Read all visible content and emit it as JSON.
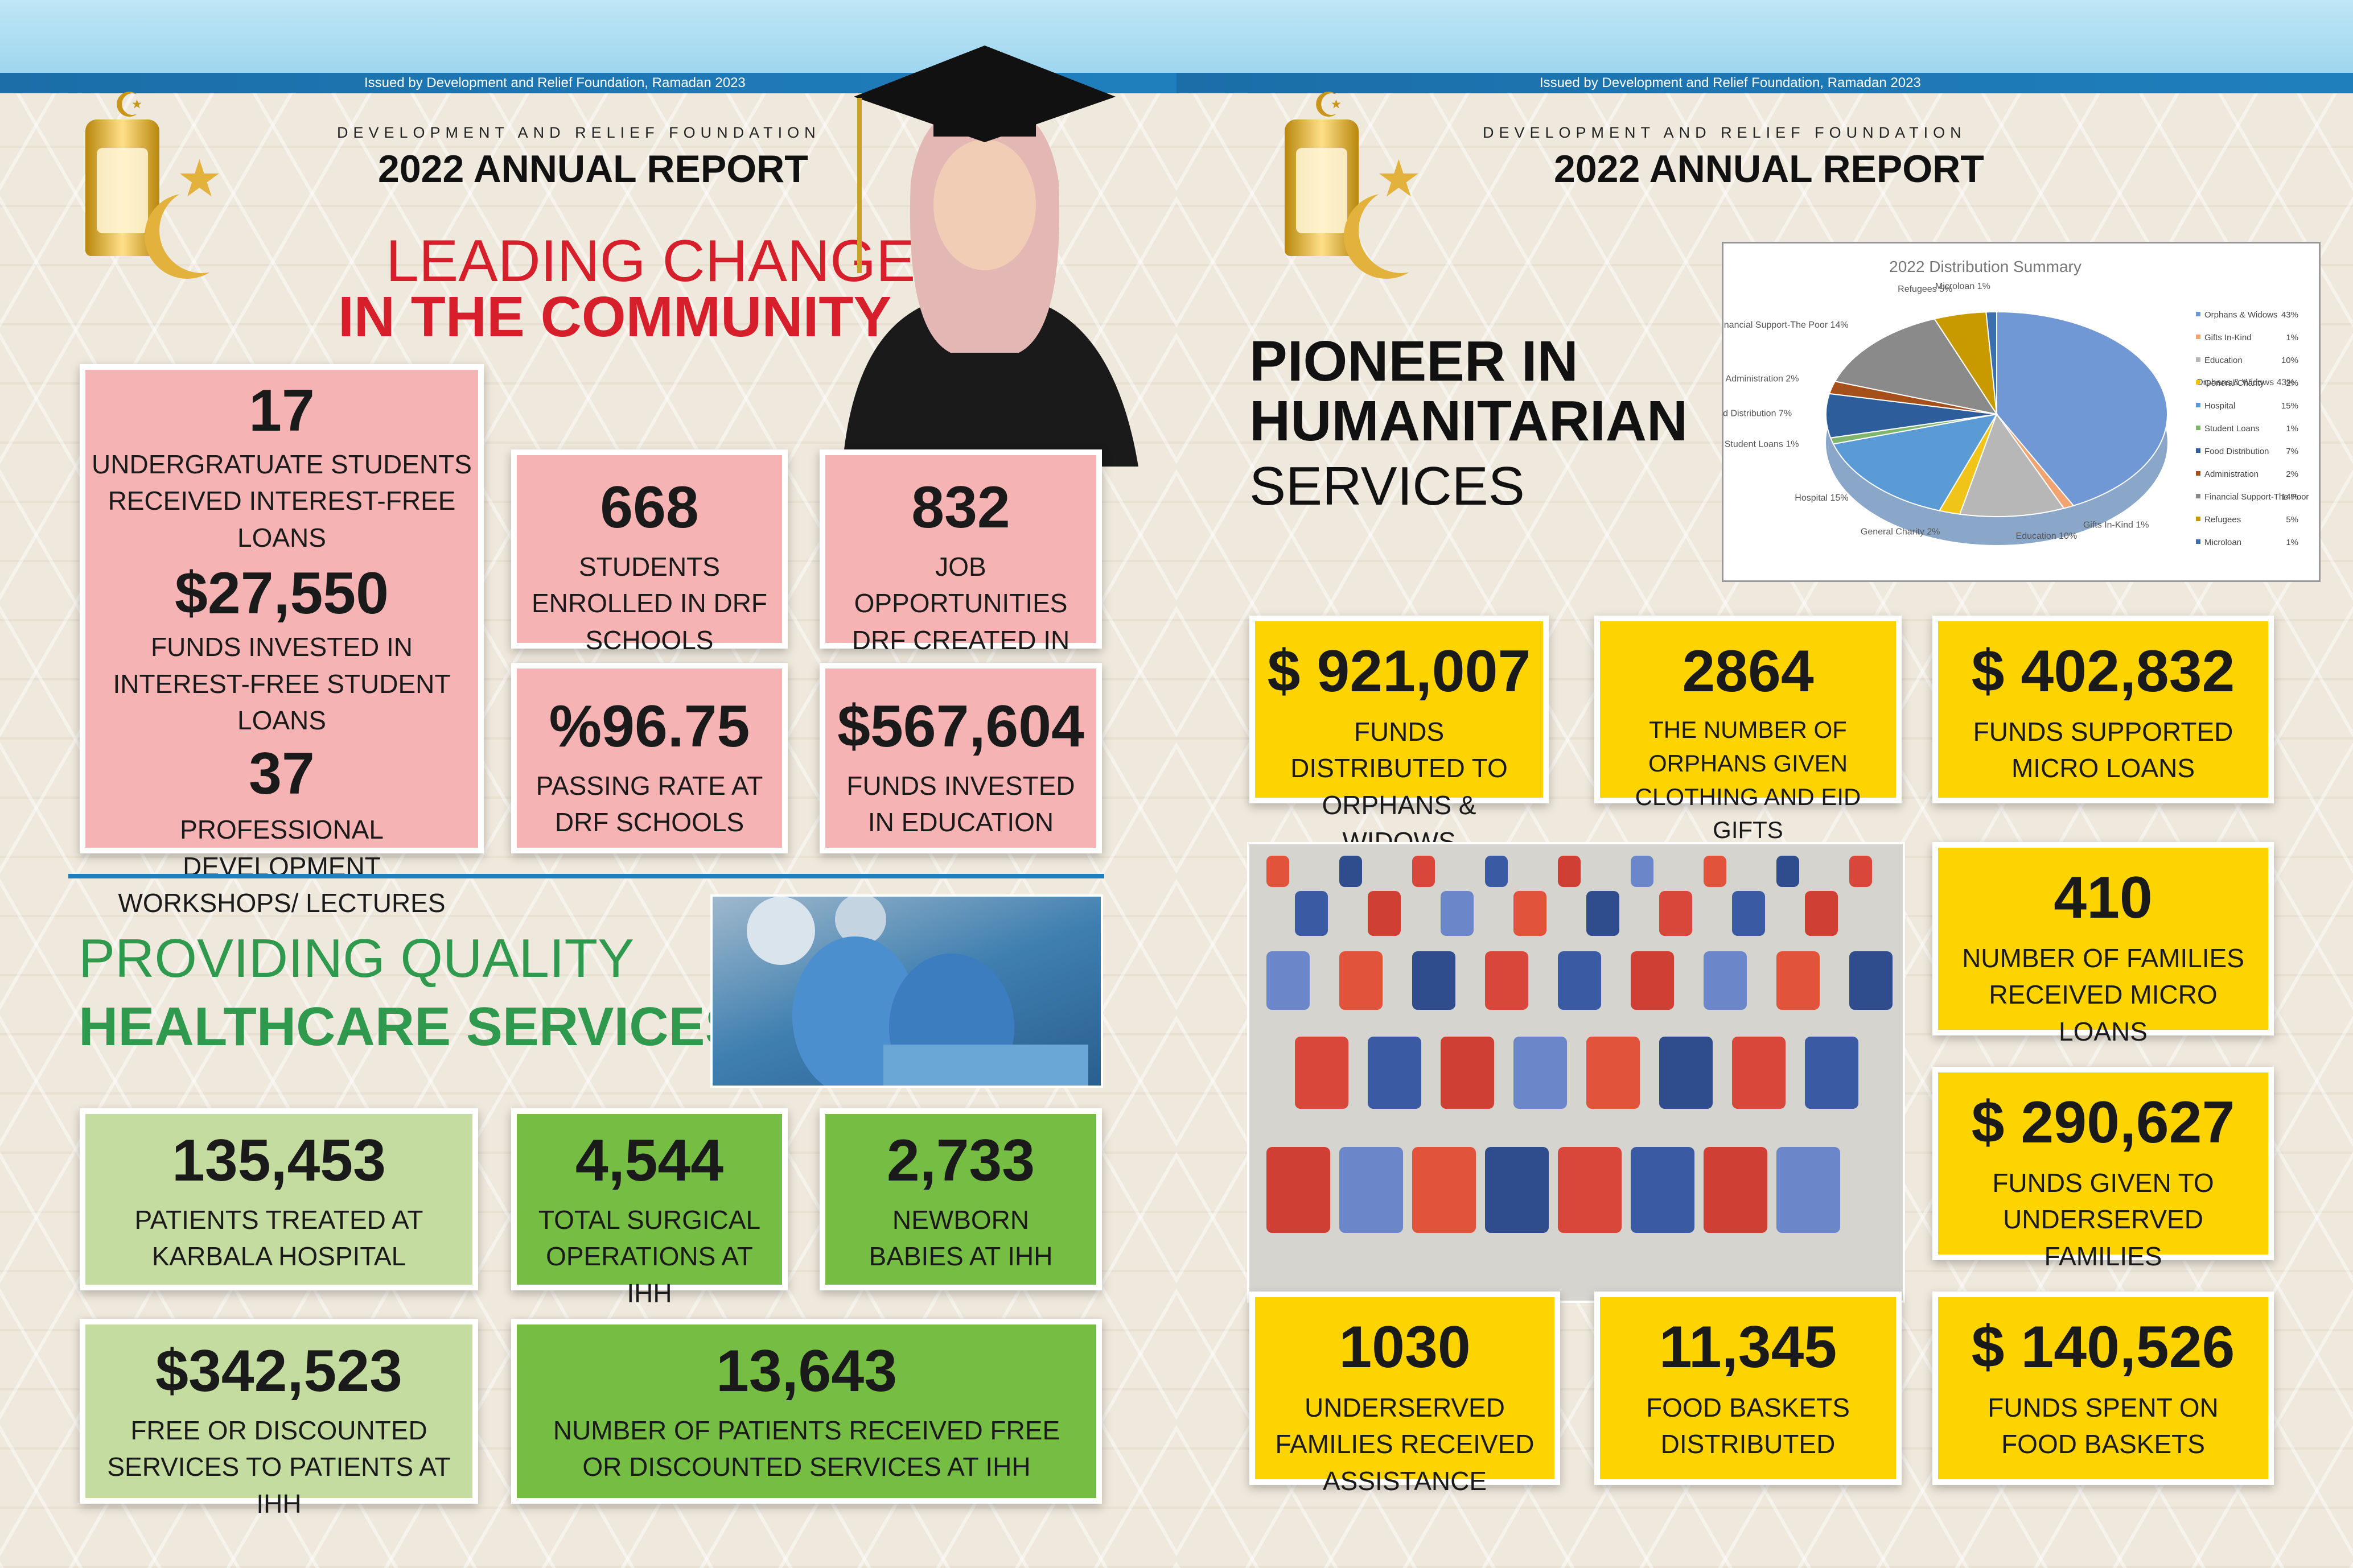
{
  "header": {
    "issued": "Issued by Development and Relief Foundation, Ramadan 2023",
    "org": "DEVELOPMENT AND RELIEF FOUNDATION",
    "report": "2022 ANNUAL REPORT"
  },
  "left": {
    "section1_line1": "LEADING CHANGE",
    "section1_line2": "IN THE COMMUNITY",
    "big_box": [
      {
        "num": "17",
        "lbl": "UNDERGRATUATE STUDENTS RECEIVED INTEREST-FREE LOANS"
      },
      {
        "num": "$27,550",
        "lbl": "FUNDS INVESTED IN INTEREST-FREE STUDENT LOANS"
      },
      {
        "num": "37",
        "lbl": "PROFESSIONAL DEVELOPMENT WORKSHOPS/ LECTURES"
      }
    ],
    "edu_stats": [
      {
        "num": "668",
        "lbl": "STUDENTS ENROLLED IN DRF SCHOOLS"
      },
      {
        "num": "832",
        "lbl": "JOB OPPORTUNITIES DRF CREATED IN IRAQ"
      },
      {
        "num": "%96.75",
        "lbl": "PASSING RATE AT DRF SCHOOLS"
      },
      {
        "num": "$567,604",
        "lbl": "FUNDS INVESTED IN EDUCATION"
      }
    ],
    "section2_line1": "PROVIDING QUALITY",
    "section2_line2": "HEALTHCARE SERVICES",
    "health_stats": [
      {
        "num": "135,453",
        "lbl": "PATIENTS TREATED AT KARBALA HOSPITAL"
      },
      {
        "num": "4,544",
        "lbl": "TOTAL SURGICAL OPERATIONS AT IHH"
      },
      {
        "num": "2,733",
        "lbl": "NEWBORN BABIES AT IHH"
      },
      {
        "num": "$342,523",
        "lbl": "FREE OR DISCOUNTED SERVICES TO PATIENTS AT IHH"
      },
      {
        "num": "13,643",
        "lbl": "NUMBER OF PATIENTS RECEIVED FREE OR DISCOUNTED SERVICES AT IHH"
      }
    ]
  },
  "right": {
    "title_line1": "PIONEER IN",
    "title_line2": "HUMANITARIAN",
    "title_line3": "SERVICES",
    "stats": [
      {
        "num": "$ 921,007",
        "lbl": "FUNDS DISTRIBUTED TO ORPHANS & WIDOWS"
      },
      {
        "num": "2864",
        "lbl": "THE NUMBER OF ORPHANS GIVEN CLOTHING AND EID GIFTS"
      },
      {
        "num": "$ 402,832",
        "lbl": "FUNDS SUPPORTED MICRO LOANS"
      },
      {
        "num": "410",
        "lbl": "NUMBER OF FAMILIES RECEIVED MICRO LOANS"
      },
      {
        "num": "$ 290,627",
        "lbl": "FUNDS GIVEN TO UNDERSERVED FAMILIES"
      },
      {
        "num": "1030",
        "lbl": "UNDERSERVED FAMILIES RECEIVED ASSISTANCE"
      },
      {
        "num": "11,345",
        "lbl": "FOOD BASKETS DISTRIBUTED"
      },
      {
        "num": "$ 140,526",
        "lbl": "FUNDS SPENT ON FOOD BASKETS"
      }
    ]
  },
  "chart_data": {
    "type": "pie",
    "title": "2022 Distribution Summary",
    "categories": [
      "Orphans & Widows",
      "Gifts In-Kind",
      "Education",
      "General Charity",
      "Hospital",
      "Student Loans",
      "Food Distribution",
      "Administration",
      "Financial Support-The Poor",
      "Refugees",
      "Microloan"
    ],
    "values": [
      43,
      1,
      10,
      2,
      15,
      1,
      7,
      2,
      14,
      5,
      1
    ],
    "slice_labels": [
      "Orphans & Widows",
      "Gifts In-Kind",
      "Education",
      "General Charity",
      "Hospital",
      "Student Loans",
      "Food Distribution",
      "Administration",
      "Financial Support-The Poor",
      "Refugees",
      "Microloan"
    ],
    "legend_labels": [
      "Orphans & Widows",
      "Gifts In-Kind",
      "Education",
      "General Charity",
      "Hospital",
      "Student Loans",
      "Food Distribution",
      "Administration",
      "Financial Support-The Poor",
      "Refugees",
      "Microloan"
    ],
    "percent_labels": [
      "43%",
      "1%",
      "10%",
      "2%",
      "15%",
      "1%",
      "7%",
      "2%",
      "14%",
      "5%",
      "1%"
    ],
    "colors": [
      "#6f98d4",
      "#f1a471",
      "#b7b7b7",
      "#f0c419",
      "#5b9bd5",
      "#7fb56c",
      "#2e5d9b",
      "#a54f1a",
      "#8a8a8a",
      "#c99a00",
      "#3c6fae"
    ],
    "legend_position": "right"
  }
}
